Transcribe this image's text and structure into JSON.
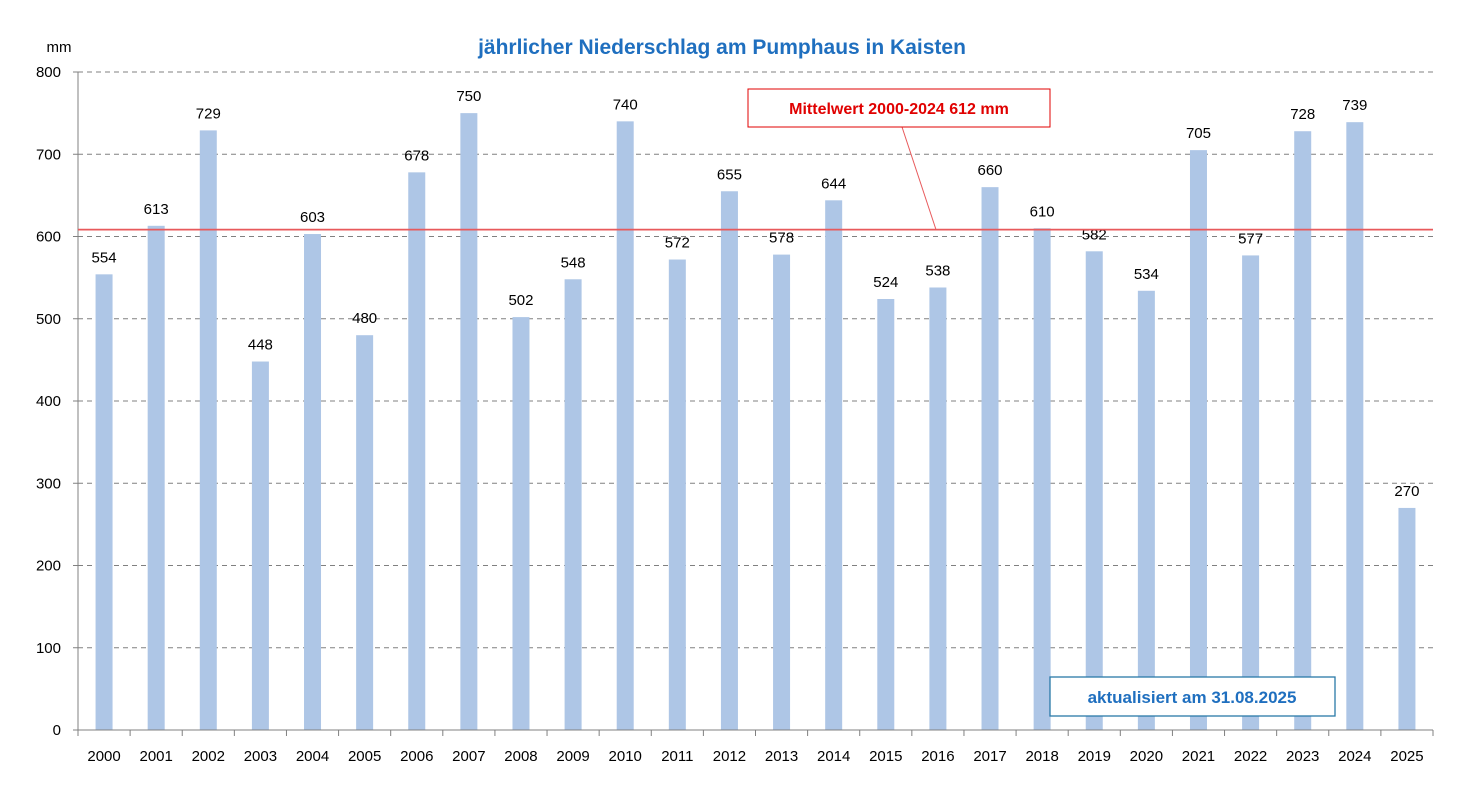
{
  "chart_data": {
    "type": "bar",
    "title": "jährlicher Niederschlag am Pumphaus in Kaisten",
    "ylabel": "mm",
    "xlabel": "",
    "ylim": [
      0,
      800
    ],
    "yticks": [
      0,
      100,
      200,
      300,
      400,
      500,
      600,
      700,
      800
    ],
    "categories": [
      "2000",
      "2001",
      "2002",
      "2003",
      "2004",
      "2005",
      "2006",
      "2007",
      "2008",
      "2009",
      "2010",
      "2011",
      "2012",
      "2013",
      "2014",
      "2015",
      "2016",
      "2017",
      "2018",
      "2019",
      "2020",
      "2021",
      "2022",
      "2023",
      "2024",
      "2025"
    ],
    "values": [
      554,
      613,
      729,
      448,
      603,
      480,
      678,
      750,
      502,
      548,
      740,
      572,
      655,
      578,
      644,
      524,
      538,
      660,
      610,
      582,
      534,
      705,
      577,
      728,
      739,
      270
    ],
    "mean_line": {
      "value": 612,
      "label": "Mittelwert 2000-2024  612 mm"
    },
    "note": "aktualisiert am 31.08.2025",
    "grid": true,
    "colors": {
      "bar": "#aec6e6",
      "title": "#1f6fbf",
      "mean": "#e8595b",
      "mean_text": "#e00000",
      "note_text": "#1f6fbf",
      "note_border": "#2a7aa8",
      "grid": "#808080"
    }
  }
}
